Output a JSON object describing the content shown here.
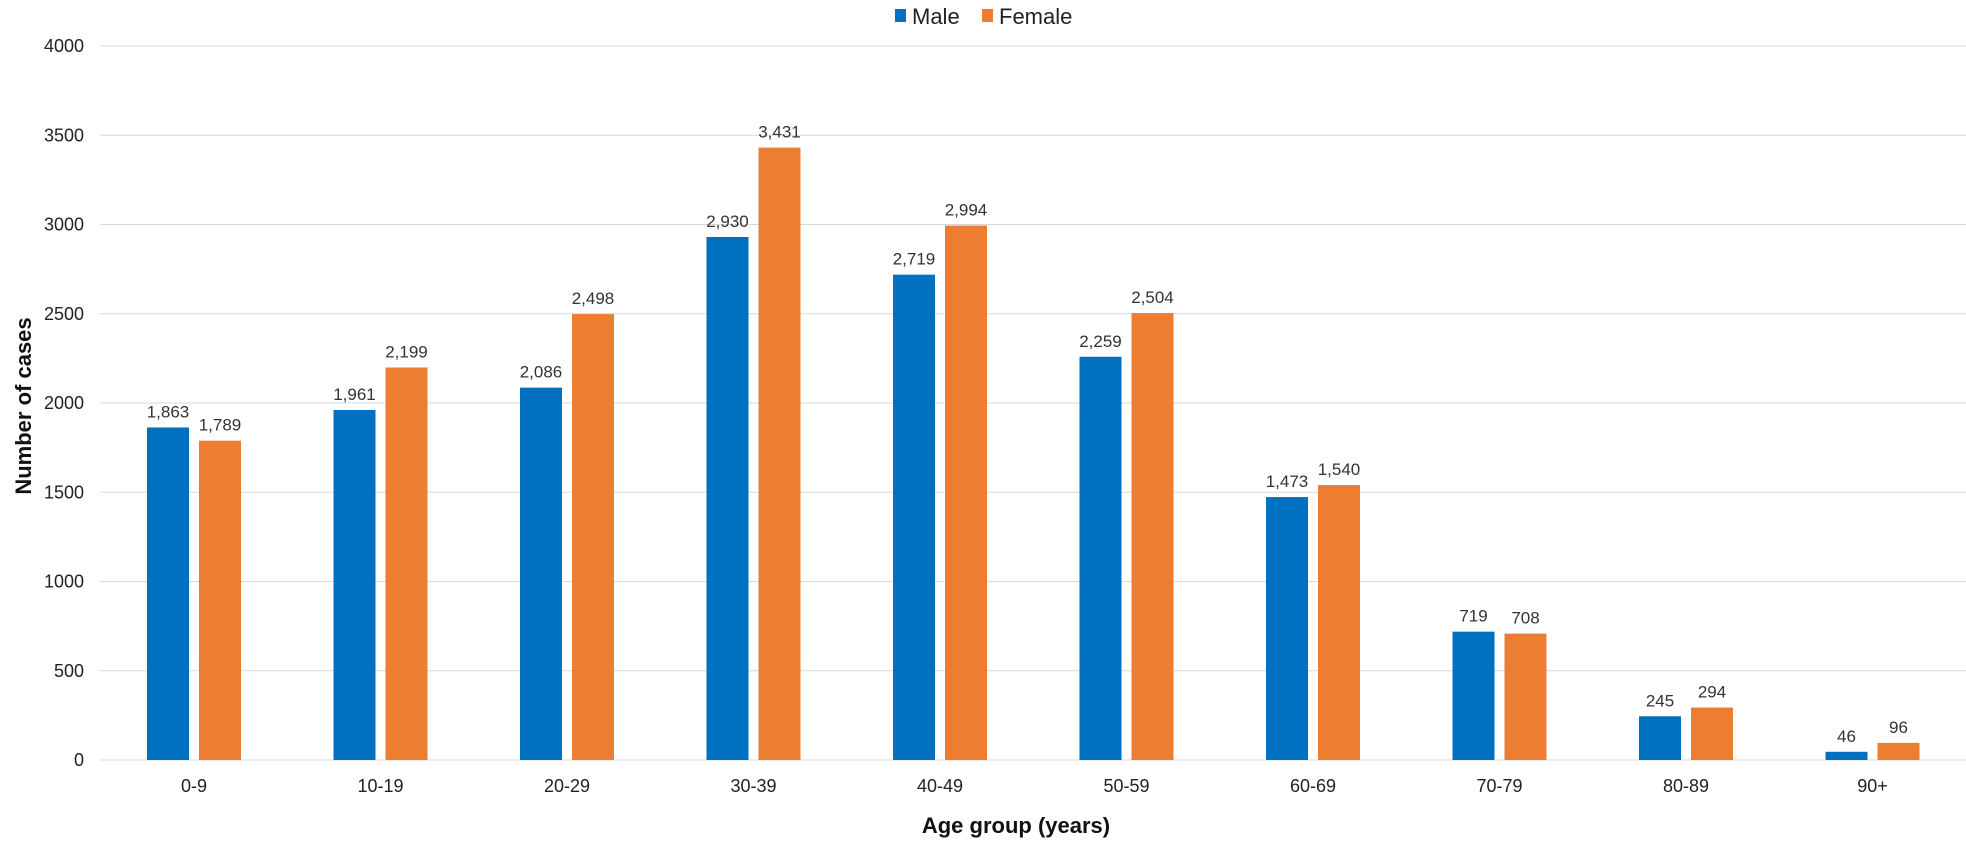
{
  "chart_data": {
    "type": "bar",
    "title": "",
    "xlabel": "Age group (years)",
    "ylabel": "Number of cases",
    "ylim": [
      0,
      4000
    ],
    "yticks": [
      0,
      500,
      1000,
      1500,
      2000,
      2500,
      3000,
      3500,
      4000
    ],
    "grid": true,
    "legend_position": "top-center",
    "categories": [
      "0-9",
      "10-19",
      "20-29",
      "30-39",
      "40-49",
      "50-59",
      "60-69",
      "70-79",
      "80-89",
      "90+"
    ],
    "series": [
      {
        "name": "Male",
        "color": "#0070C0",
        "values": [
          1863,
          1961,
          2086,
          2930,
          2719,
          2259,
          1473,
          719,
          245,
          46
        ],
        "labels": [
          "1,863",
          "1,961",
          "2,086",
          "2,930",
          "2,719",
          "2,259",
          "1,473",
          "719",
          "245",
          "46"
        ]
      },
      {
        "name": "Female",
        "color": "#ED7D31",
        "values": [
          1789,
          2199,
          2498,
          3431,
          2994,
          2504,
          1540,
          708,
          294,
          96
        ],
        "labels": [
          "1,789",
          "2,199",
          "2,498",
          "3,431",
          "2,994",
          "2,504",
          "1,540",
          "708",
          "294",
          "96"
        ]
      }
    ]
  }
}
